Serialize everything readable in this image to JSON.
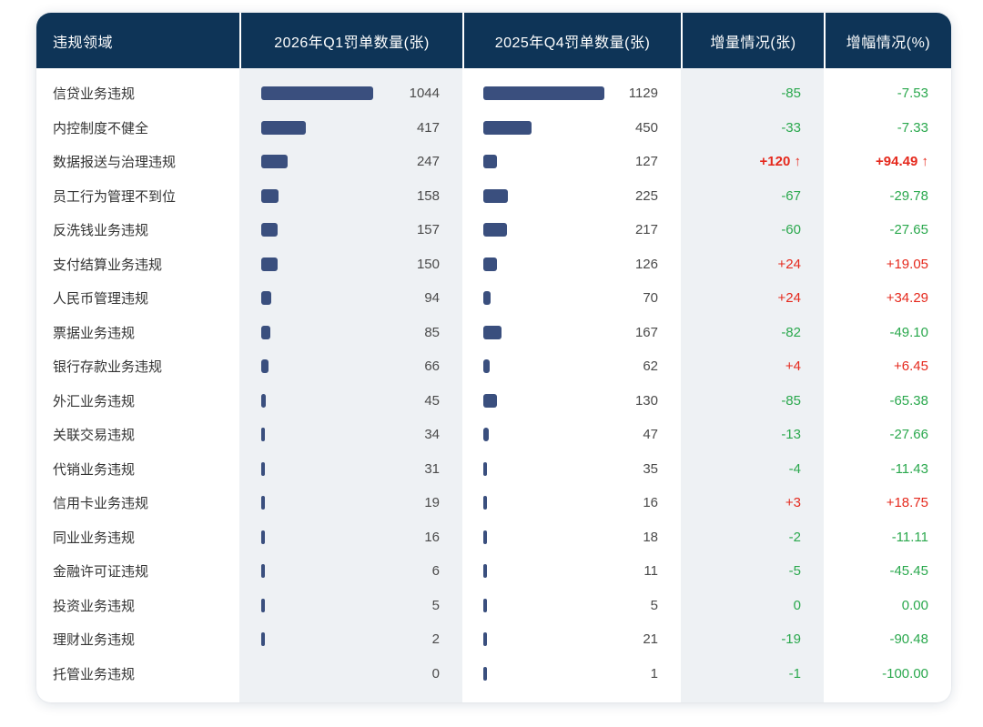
{
  "colors": {
    "header_bg": "#0e3457",
    "header_text": "#ffffff",
    "bar": "#3a4f7e",
    "col_shade": "#eef1f4",
    "positive_red": "#e5291d",
    "negative_green": "#2aa84d",
    "label_text": "#333333",
    "value_text": "#4a4a4a"
  },
  "icons": {
    "up_arrow": "↑"
  },
  "table": {
    "headers": [
      "违规领域",
      "2026年Q1罚单数量(张)",
      "2025年Q4罚单数量(张)",
      "增量情况(张)",
      "增幅情况(%)"
    ],
    "rows": [
      {
        "label": "信贷业务违规",
        "q1": 1044,
        "q4": 1129,
        "delta": "-85",
        "pct": "-7.53",
        "trend": "down",
        "highlight": false
      },
      {
        "label": "内控制度不健全",
        "q1": 417,
        "q4": 450,
        "delta": "-33",
        "pct": "-7.33",
        "trend": "down",
        "highlight": false
      },
      {
        "label": "数据报送与治理违规",
        "q1": 247,
        "q4": 127,
        "delta": "+120",
        "pct": "+94.49",
        "trend": "up",
        "highlight": true
      },
      {
        "label": "员工行为管理不到位",
        "q1": 158,
        "q4": 225,
        "delta": "-67",
        "pct": "-29.78",
        "trend": "down",
        "highlight": false
      },
      {
        "label": "反洗钱业务违规",
        "q1": 157,
        "q4": 217,
        "delta": "-60",
        "pct": "-27.65",
        "trend": "down",
        "highlight": false
      },
      {
        "label": "支付结算业务违规",
        "q1": 150,
        "q4": 126,
        "delta": "+24",
        "pct": "+19.05",
        "trend": "up",
        "highlight": false
      },
      {
        "label": "人民币管理违规",
        "q1": 94,
        "q4": 70,
        "delta": "+24",
        "pct": "+34.29",
        "trend": "up",
        "highlight": false
      },
      {
        "label": "票据业务违规",
        "q1": 85,
        "q4": 167,
        "delta": "-82",
        "pct": "-49.10",
        "trend": "down",
        "highlight": false
      },
      {
        "label": "银行存款业务违规",
        "q1": 66,
        "q4": 62,
        "delta": "+4",
        "pct": "+6.45",
        "trend": "up",
        "highlight": false
      },
      {
        "label": "外汇业务违规",
        "q1": 45,
        "q4": 130,
        "delta": "-85",
        "pct": "-65.38",
        "trend": "down",
        "highlight": false
      },
      {
        "label": "关联交易违规",
        "q1": 34,
        "q4": 47,
        "delta": "-13",
        "pct": "-27.66",
        "trend": "down",
        "highlight": false
      },
      {
        "label": "代销业务违规",
        "q1": 31,
        "q4": 35,
        "delta": "-4",
        "pct": "-11.43",
        "trend": "down",
        "highlight": false
      },
      {
        "label": "信用卡业务违规",
        "q1": 19,
        "q4": 16,
        "delta": "+3",
        "pct": "+18.75",
        "trend": "up",
        "highlight": false
      },
      {
        "label": "同业业务违规",
        "q1": 16,
        "q4": 18,
        "delta": "-2",
        "pct": "-11.11",
        "trend": "down",
        "highlight": false
      },
      {
        "label": "金融许可证违规",
        "q1": 6,
        "q4": 11,
        "delta": "-5",
        "pct": "-45.45",
        "trend": "down",
        "highlight": false
      },
      {
        "label": "投资业务违规",
        "q1": 5,
        "q4": 5,
        "delta": "0",
        "pct": "0.00",
        "trend": "flat",
        "highlight": false
      },
      {
        "label": "理财业务违规",
        "q1": 2,
        "q4": 21,
        "delta": "-19",
        "pct": "-90.48",
        "trend": "down",
        "highlight": false
      },
      {
        "label": "托管业务违规",
        "q1": 0,
        "q4": 1,
        "delta": "-1",
        "pct": "-100.00",
        "trend": "down",
        "highlight": false
      }
    ]
  },
  "chart_data": {
    "type": "table",
    "title": "",
    "columns": [
      "违规领域",
      "2026年Q1罚单数量(张)",
      "2025年Q4罚单数量(张)",
      "增量情况(张)",
      "增幅情况(%)"
    ],
    "categories": [
      "信贷业务违规",
      "内控制度不健全",
      "数据报送与治理违规",
      "员工行为管理不到位",
      "反洗钱业务违规",
      "支付结算业务违规",
      "人民币管理违规",
      "票据业务违规",
      "银行存款业务违规",
      "外汇业务违规",
      "关联交易违规",
      "代销业务违规",
      "信用卡业务违规",
      "同业业务违规",
      "金融许可证违规",
      "投资业务违规",
      "理财业务违规",
      "托管业务违规"
    ],
    "series": [
      {
        "name": "2026年Q1罚单数量(张)",
        "values": [
          1044,
          417,
          247,
          158,
          157,
          150,
          94,
          85,
          66,
          45,
          34,
          31,
          19,
          16,
          6,
          5,
          2,
          0
        ]
      },
      {
        "name": "2025年Q4罚单数量(张)",
        "values": [
          1129,
          450,
          127,
          225,
          217,
          126,
          70,
          167,
          62,
          130,
          47,
          35,
          16,
          18,
          11,
          5,
          21,
          1
        ]
      },
      {
        "name": "增量情况(张)",
        "values": [
          -85,
          -33,
          120,
          -67,
          -60,
          24,
          24,
          -82,
          4,
          -85,
          -13,
          -4,
          3,
          -2,
          -5,
          0,
          -19,
          -1
        ]
      },
      {
        "name": "增幅情况(%)",
        "values": [
          -7.53,
          -7.33,
          94.49,
          -29.78,
          -27.65,
          19.05,
          34.29,
          -49.1,
          6.45,
          -65.38,
          -27.66,
          -11.43,
          18.75,
          -11.11,
          -45.45,
          0.0,
          -90.48,
          -100.0
        ]
      }
    ],
    "bar_style": "horizontal inline bars, shared scale across both quantity columns, max value 1129"
  }
}
